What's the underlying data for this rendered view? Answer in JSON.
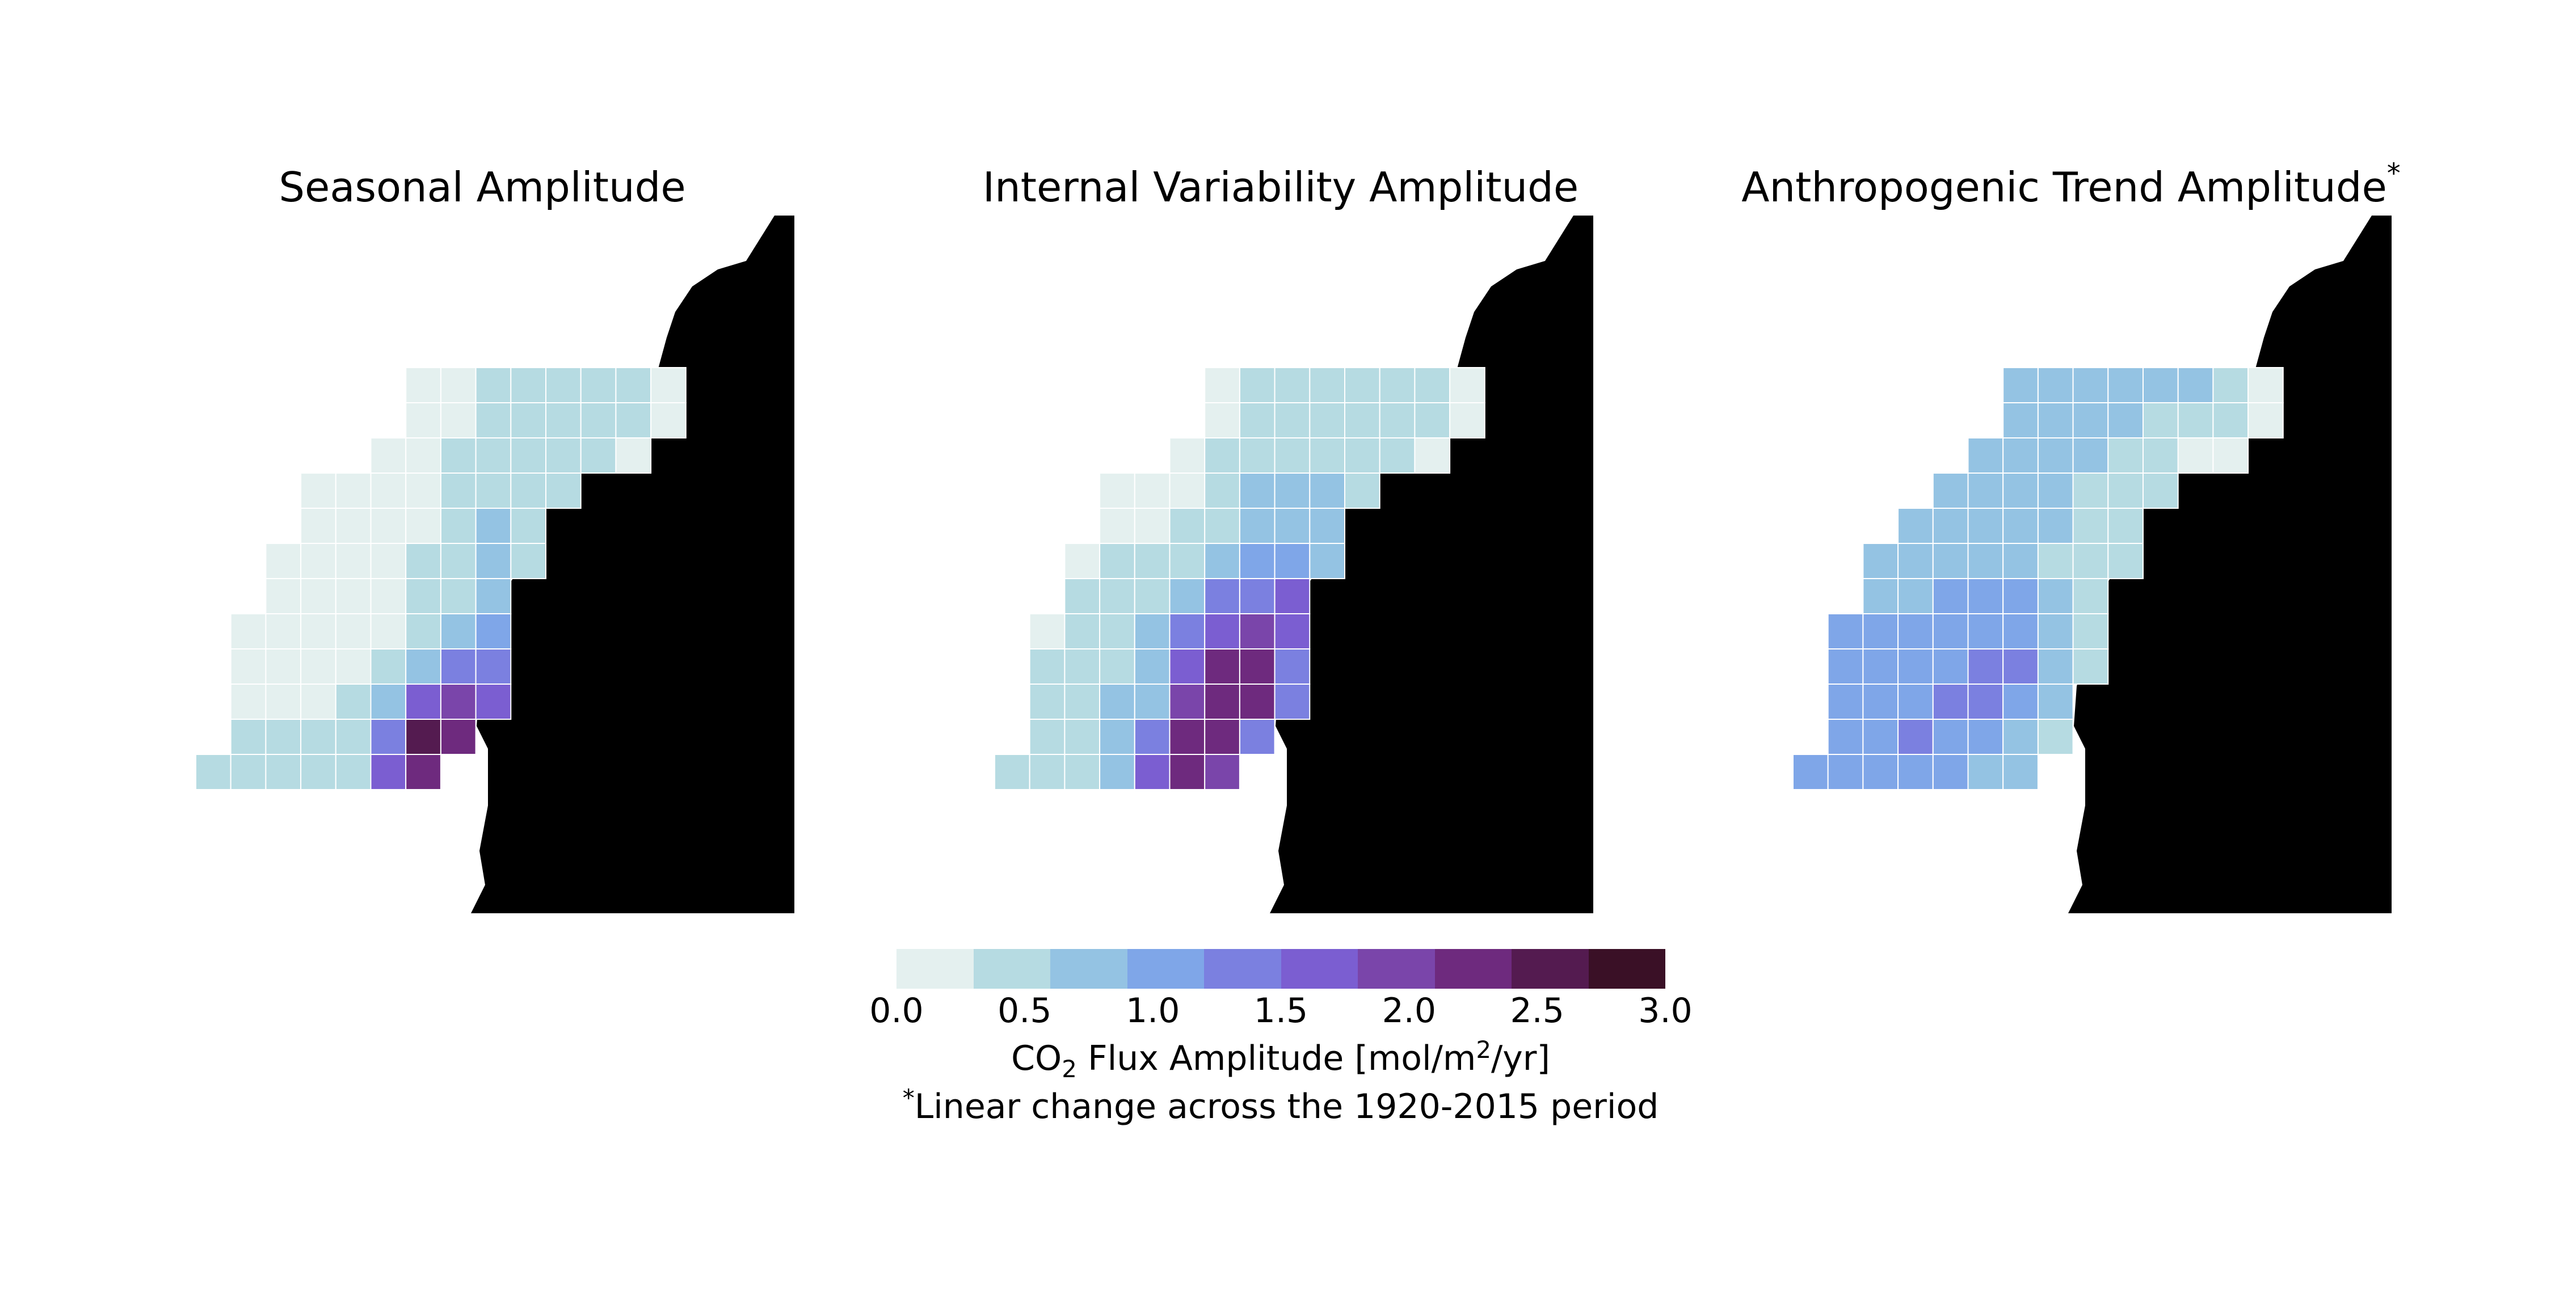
{
  "figure": {
    "panels": [
      {
        "title": "Seasonal Amplitude",
        "title_mark": ""
      },
      {
        "title": "Internal Variability Amplitude",
        "title_mark": ""
      },
      {
        "title": "Anthropogenic Trend Amplitude",
        "title_mark": "*"
      }
    ],
    "colorbar": {
      "colors": [
        "#e4f0ef",
        "#b6dbe2",
        "#94c3e3",
        "#7fa6e8",
        "#7b80e0",
        "#7b5ed1",
        "#7a45aa",
        "#6e2a7e",
        "#541b50",
        "#3a1026"
      ],
      "ticks": [
        "0.0",
        "0.5",
        "1.0",
        "1.5",
        "2.0",
        "2.5",
        "3.0"
      ],
      "label_pre": "CO",
      "label_sub": "2",
      "label_mid": " Flux Amplitude [mol/m",
      "label_sup": "2",
      "label_post": "/yr]"
    },
    "footnote": {
      "mark": "*",
      "text": "Linear change across the 1920-2015 period"
    }
  },
  "chart_data": {
    "type": "heatmap",
    "colorbar_range": [
      0.0,
      3.0
    ],
    "colorbar_ticks": [
      0.0,
      0.5,
      1.0,
      1.5,
      2.0,
      2.5,
      3.0
    ],
    "colorbar_label": "CO2 Flux Amplitude [mol/m2/yr]",
    "panels": [
      {
        "title": "Seasonal Amplitude",
        "rows": [
          [
            null,
            null,
            null,
            null,
            null,
            null,
            0,
            0,
            0.4,
            0.4,
            0.4,
            0.4,
            0.4,
            0,
            null
          ],
          [
            null,
            null,
            null,
            null,
            null,
            null,
            0,
            0,
            0.4,
            0.4,
            0.4,
            0.4,
            0.4,
            0,
            null
          ],
          [
            null,
            null,
            null,
            null,
            null,
            0,
            0,
            0.4,
            0.4,
            0.4,
            0.4,
            0.4,
            0,
            null,
            null
          ],
          [
            null,
            null,
            null,
            0,
            0,
            0,
            0,
            0.4,
            0.4,
            0.4,
            0.4,
            null,
            null,
            null,
            null
          ],
          [
            null,
            null,
            null,
            0,
            0,
            0,
            0,
            0.4,
            0.8,
            0.4,
            null,
            null,
            null,
            null,
            null
          ],
          [
            null,
            null,
            0,
            0,
            0,
            0,
            0.4,
            0.4,
            0.8,
            0.4,
            null,
            null,
            null,
            null,
            null
          ],
          [
            null,
            null,
            0,
            0,
            0,
            0,
            0.4,
            0.4,
            0.8,
            null,
            null,
            null,
            null,
            null,
            null
          ],
          [
            null,
            0,
            0,
            0,
            0,
            0,
            0.4,
            0.8,
            1.0,
            null,
            null,
            null,
            null,
            null,
            null
          ],
          [
            null,
            0,
            0,
            0,
            0,
            0.4,
            0.8,
            1.3,
            1.3,
            null,
            null,
            null,
            null,
            null,
            null
          ],
          [
            null,
            0,
            0,
            0,
            0.4,
            0.8,
            1.5,
            1.8,
            1.5,
            null,
            null,
            null,
            null,
            null,
            null
          ],
          [
            null,
            0.4,
            0.4,
            0.4,
            0.4,
            1.3,
            2.5,
            2.1,
            null,
            null,
            null,
            null,
            null,
            null,
            null
          ],
          [
            0.4,
            0.4,
            0.4,
            0.4,
            0.4,
            1.5,
            2.1,
            null,
            null,
            null,
            null,
            null,
            null,
            null,
            null
          ]
        ]
      },
      {
        "title": "Internal Variability Amplitude",
        "rows": [
          [
            null,
            null,
            null,
            null,
            null,
            null,
            0,
            0.4,
            0.4,
            0.4,
            0.4,
            0.4,
            0.4,
            0,
            null
          ],
          [
            null,
            null,
            null,
            null,
            null,
            null,
            0,
            0.4,
            0.4,
            0.4,
            0.4,
            0.4,
            0.4,
            0,
            null
          ],
          [
            null,
            null,
            null,
            null,
            null,
            0,
            0.4,
            0.4,
            0.4,
            0.4,
            0.4,
            0.4,
            0,
            null,
            null
          ],
          [
            null,
            null,
            null,
            0,
            0,
            0,
            0.4,
            0.8,
            0.8,
            0.8,
            0.4,
            null,
            null,
            null,
            null
          ],
          [
            null,
            null,
            null,
            0,
            0,
            0.4,
            0.4,
            0.8,
            0.8,
            0.8,
            null,
            null,
            null,
            null,
            null
          ],
          [
            null,
            null,
            0,
            0.4,
            0.4,
            0.4,
            0.8,
            1.0,
            1.0,
            0.8,
            null,
            null,
            null,
            null,
            null
          ],
          [
            null,
            null,
            0.4,
            0.4,
            0.4,
            0.8,
            1.3,
            1.3,
            1.5,
            null,
            null,
            null,
            null,
            null,
            null
          ],
          [
            null,
            0,
            0.4,
            0.4,
            0.8,
            1.3,
            1.5,
            1.8,
            1.5,
            null,
            null,
            null,
            null,
            null,
            null
          ],
          [
            null,
            0.4,
            0.4,
            0.4,
            0.8,
            1.5,
            2.1,
            2.1,
            1.3,
            null,
            null,
            null,
            null,
            null,
            null
          ],
          [
            null,
            0.4,
            0.4,
            0.8,
            0.8,
            1.8,
            2.1,
            2.1,
            1.3,
            null,
            null,
            null,
            null,
            null,
            null
          ],
          [
            null,
            0.4,
            0.4,
            0.8,
            1.3,
            2.1,
            2.1,
            1.3,
            null,
            null,
            null,
            null,
            null,
            null,
            null
          ],
          [
            0.4,
            0.4,
            0.4,
            0.8,
            1.5,
            2.1,
            1.8,
            null,
            null,
            null,
            null,
            null,
            null,
            null,
            null
          ]
        ]
      },
      {
        "title": "Anthropogenic Trend Amplitude*",
        "rows": [
          [
            null,
            null,
            null,
            null,
            null,
            null,
            0.8,
            0.8,
            0.8,
            0.8,
            0.8,
            0.8,
            0.4,
            0,
            null
          ],
          [
            null,
            null,
            null,
            null,
            null,
            null,
            0.8,
            0.8,
            0.8,
            0.8,
            0.4,
            0.4,
            0.4,
            0,
            null
          ],
          [
            null,
            null,
            null,
            null,
            null,
            0.8,
            0.8,
            0.8,
            0.8,
            0.4,
            0.4,
            0,
            0,
            null,
            null
          ],
          [
            null,
            null,
            null,
            null,
            0.8,
            0.8,
            0.8,
            0.8,
            0.4,
            0.4,
            0.4,
            null,
            null,
            null,
            null
          ],
          [
            null,
            null,
            null,
            0.8,
            0.8,
            0.8,
            0.8,
            0.8,
            0.4,
            0.4,
            null,
            null,
            null,
            null,
            null
          ],
          [
            null,
            null,
            0.8,
            0.8,
            0.8,
            0.8,
            0.8,
            0.4,
            0.4,
            0.4,
            null,
            null,
            null,
            null,
            null
          ],
          [
            null,
            null,
            0.8,
            0.8,
            1.0,
            1.0,
            1.0,
            0.8,
            0.4,
            null,
            null,
            null,
            null,
            null,
            null
          ],
          [
            null,
            1.0,
            1.0,
            1.0,
            1.0,
            1.0,
            1.0,
            0.8,
            0.4,
            null,
            null,
            null,
            null,
            null,
            null
          ],
          [
            null,
            1.0,
            1.0,
            1.0,
            1.0,
            1.3,
            1.3,
            0.8,
            0.4,
            null,
            null,
            null,
            null,
            null,
            null
          ],
          [
            null,
            1.0,
            1.0,
            1.0,
            1.3,
            1.3,
            1.0,
            0.8,
            null,
            null,
            null,
            null,
            null,
            null,
            null
          ],
          [
            null,
            1.0,
            1.0,
            1.3,
            1.0,
            1.0,
            0.8,
            0.4,
            null,
            null,
            null,
            null,
            null,
            null,
            null
          ],
          [
            1.0,
            1.0,
            1.0,
            1.0,
            1.0,
            0.8,
            0.8,
            null,
            null,
            null,
            null,
            null,
            null,
            null,
            null
          ]
        ]
      }
    ]
  }
}
